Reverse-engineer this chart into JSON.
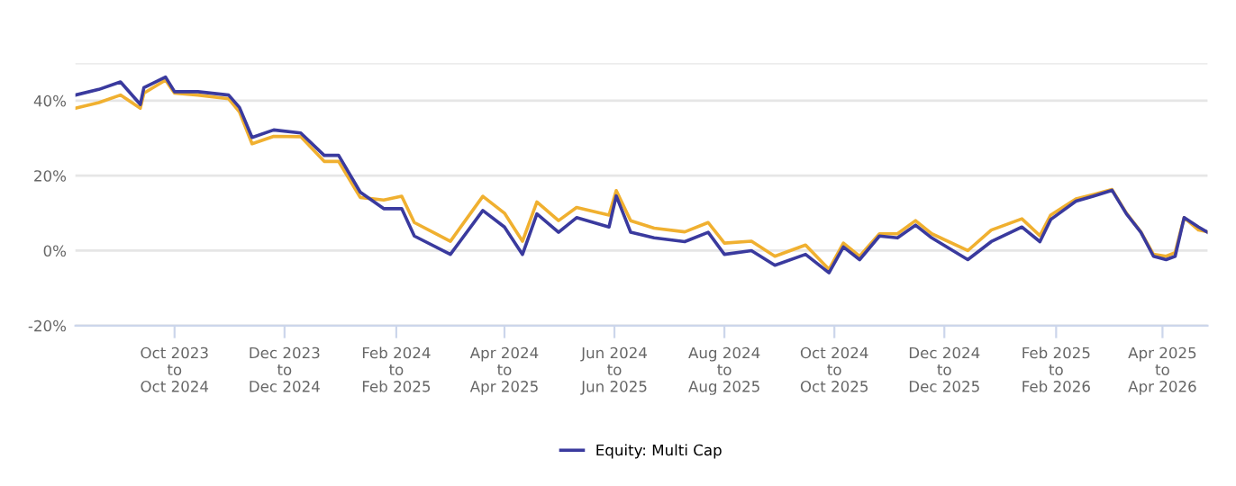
{
  "chart_data": {
    "type": "line",
    "x": [
      "2023-08-07",
      "2023-08-20",
      "2023-09-01",
      "2023-09-12",
      "2023-09-14",
      "2023-09-26",
      "2023-10-01",
      "2023-10-14",
      "2023-10-31",
      "2023-11-06",
      "2023-11-13",
      "2023-11-25",
      "2023-12-10",
      "2023-12-23",
      "2023-12-31",
      "2024-01-12",
      "2024-01-25",
      "2024-02-04",
      "2024-02-11",
      "2024-03-02",
      "2024-03-20",
      "2024-04-01",
      "2024-04-11",
      "2024-04-19",
      "2024-05-01",
      "2024-05-11",
      "2024-05-29",
      "2024-06-02",
      "2024-06-10",
      "2024-06-23",
      "2024-07-10",
      "2024-07-23",
      "2024-08-01",
      "2024-08-16",
      "2024-08-29",
      "2024-09-15",
      "2024-09-28",
      "2024-10-06",
      "2024-10-15",
      "2024-10-26",
      "2024-11-05",
      "2024-11-15",
      "2024-11-24",
      "2024-12-14",
      "2024-12-27",
      "2025-01-13",
      "2025-01-23",
      "2025-01-29",
      "2025-02-12",
      "2025-02-22",
      "2025-03-04",
      "2025-03-12",
      "2025-03-20",
      "2025-03-27",
      "2025-04-03",
      "2025-04-08",
      "2025-04-13",
      "2025-04-21",
      "2025-04-26"
    ],
    "series": [
      {
        "color": "#f0b030",
        "values": [
          38,
          39.5,
          41.5,
          38,
          42,
          45.5,
          42,
          41.5,
          40.5,
          37,
          28.5,
          30.5,
          30.4,
          23.8,
          23.8,
          14.2,
          13.5,
          14.5,
          7.5,
          2.5,
          14.5,
          10,
          2.5,
          13,
          8,
          11.5,
          9.5,
          16,
          8,
          6,
          5,
          7.5,
          2,
          2.5,
          -1.5,
          1.5,
          -5,
          2,
          -1.5,
          4.5,
          4.5,
          8,
          4.5,
          0,
          5.5,
          8.5,
          4,
          9.5,
          13.8,
          15,
          16.3,
          10,
          5,
          -1,
          -1.5,
          -0.5,
          8.8,
          5.5,
          5
        ]
      },
      {
        "name": "Equity: Multi Cap",
        "color": "#3a3a9e",
        "values": [
          41.5,
          43,
          45,
          39,
          43.5,
          46.3,
          42.4,
          42.4,
          41.5,
          38.2,
          30.2,
          32.2,
          31.4,
          25.4,
          25.4,
          15.6,
          11.2,
          11.2,
          3.9,
          -1,
          10.7,
          6.3,
          -1,
          9.8,
          4.9,
          8.8,
          6.3,
          14.6,
          4.9,
          3.4,
          2.4,
          4.9,
          -1,
          0,
          -3.9,
          -1,
          -5.9,
          1,
          -2.4,
          3.9,
          3.4,
          6.8,
          3.4,
          -2.4,
          2.4,
          6.3,
          2.4,
          8.3,
          13.2,
          14.6,
          16.1,
          9.8,
          4.9,
          -1.5,
          -2.4,
          -1.5,
          8.8,
          6.3,
          4.9
        ]
      }
    ],
    "xlim": [
      "2023-08-07",
      "2025-04-26"
    ],
    "xticks": [
      {
        "value": "2023-10-01",
        "label": "Oct 2023\nto\nOct 2024"
      },
      {
        "value": "2023-12-01",
        "label": "Dec 2023\nto\nDec 2024"
      },
      {
        "value": "2024-02-01",
        "label": "Feb 2024\nto\nFeb 2025"
      },
      {
        "value": "2024-04-01",
        "label": "Apr 2024\nto\nApr 2025"
      },
      {
        "value": "2024-06-01",
        "label": "Jun 2024\nto\nJun 2025"
      },
      {
        "value": "2024-08-01",
        "label": "Aug 2024\nto\nAug 2025"
      },
      {
        "value": "2024-10-01",
        "label": "Oct 2024\nto\nOct 2025"
      },
      {
        "value": "2024-12-01",
        "label": "Dec 2024\nto\nDec 2025"
      },
      {
        "value": "2025-02-01",
        "label": "Feb 2025\nto\nFeb 2026"
      },
      {
        "value": "2025-04-01",
        "label": "Apr 2025\nto\nApr 2026"
      }
    ],
    "ylim": [
      -20,
      50
    ],
    "yticks": [
      {
        "value": -20,
        "label": "-20%"
      },
      {
        "value": 0,
        "label": "0%"
      },
      {
        "value": 20,
        "label": "20%"
      },
      {
        "value": 40,
        "label": "40%"
      },
      {
        "value": 50,
        "label": null
      }
    ],
    "grid": "y",
    "legend": "bottom",
    "marker": "none",
    "line_style": "solid"
  }
}
